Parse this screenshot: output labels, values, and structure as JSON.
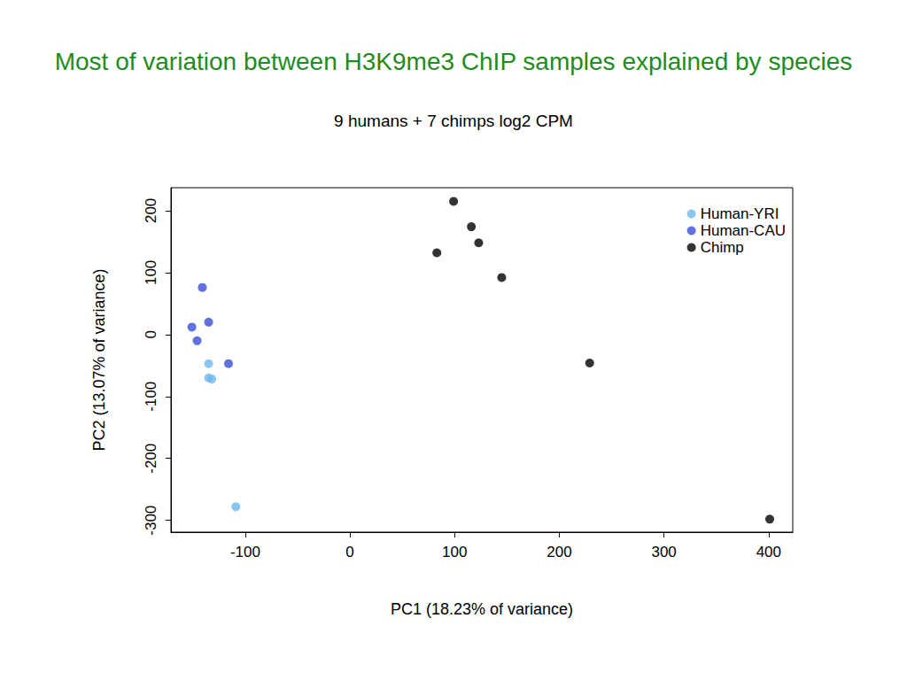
{
  "chart_data": {
    "type": "scatter",
    "title": "Most of variation between H3K9me3 ChIP samples explained by species",
    "subtitle": "9 humans + 7 chimps log2 CPM",
    "x_label": "PC1 (18.23% of variance)",
    "y_label": "PC2 (13.07% of variance)",
    "xlim": [
      -171,
      423
    ],
    "xticks": [
      -100,
      0,
      100,
      200,
      300,
      400
    ],
    "ylim": [
      -319,
      237
    ],
    "yticks": [
      -300,
      -200,
      -100,
      0,
      100,
      200
    ],
    "grid": false,
    "legend": "top-right",
    "marker": "circle",
    "series": [
      {
        "name": "Human-YRI",
        "color": "#6cb8ee",
        "values": [
          [
            -135,
            -47
          ],
          [
            -135,
            -70
          ],
          [
            -132,
            -72
          ],
          [
            -109,
            -278
          ]
        ]
      },
      {
        "name": "Human-CAU",
        "color": "#3a4fd6",
        "values": [
          [
            -141,
            76
          ],
          [
            -135,
            20
          ],
          [
            -151,
            12
          ],
          [
            -146,
            -10
          ],
          [
            -116,
            -47
          ]
        ]
      },
      {
        "name": "Chimp",
        "color": "#000000",
        "values": [
          [
            99,
            215
          ],
          [
            116,
            174
          ],
          [
            123,
            148
          ],
          [
            83,
            132
          ],
          [
            145,
            92
          ],
          [
            229,
            -46
          ],
          [
            401,
            -298
          ]
        ]
      }
    ]
  }
}
